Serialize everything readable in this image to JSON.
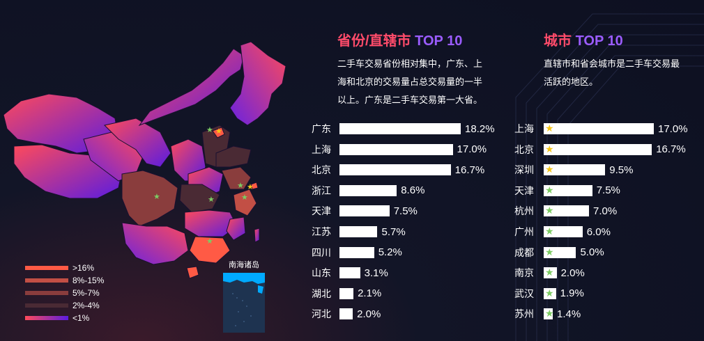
{
  "colors": {
    "accent_red": "#ff4b6a",
    "accent_purple": "#9b5cff",
    "gold_star": "#f5c518",
    "green_star": "#7ccc63"
  },
  "map": {
    "islands_label": "南海诸岛",
    "legend": [
      {
        "label": ">16%",
        "color": "#ff5a45"
      },
      {
        "label": "8%-15%",
        "color": "#c24f45"
      },
      {
        "label": "5%-7%",
        "color": "#8a3d3d"
      },
      {
        "label": "2%-4%",
        "color": "#4a2a34"
      },
      {
        "label": "<1%",
        "gradient": [
          "#ff4a5a",
          "#5a1ce0"
        ]
      }
    ]
  },
  "province_section": {
    "title_cn": "省份/直辖市",
    "title_en": "TOP 10",
    "desc_lines": [
      "二手车交易省份相对集中，广东、上",
      "海和北京的交易量占总交易量的一半",
      "以上。广东是二手车交易第一大省。"
    ]
  },
  "city_section": {
    "title_cn": "城市",
    "title_en": "TOP 10",
    "desc_lines": [
      "直辖市和省会城市是二手车交易最",
      "活跃的地区。"
    ]
  },
  "chart_data": [
    {
      "type": "bar",
      "orientation": "horizontal",
      "categories": [
        "广东",
        "上海",
        "北京",
        "浙江",
        "天津",
        "江苏",
        "四川",
        "山东",
        "湖北",
        "河北"
      ],
      "values": [
        18.2,
        17.0,
        16.7,
        8.6,
        7.5,
        5.7,
        5.2,
        3.1,
        2.1,
        2.0
      ],
      "value_labels": [
        "18.2%",
        "17.0%",
        "16.7%",
        "8.6%",
        "7.5%",
        "5.7%",
        "5.2%",
        "3.1%",
        "2.1%",
        "2.0%"
      ],
      "title": "省份/直辖市 TOP 10",
      "xlim": [
        0,
        18.2
      ]
    },
    {
      "type": "bar",
      "orientation": "horizontal",
      "categories": [
        "上海",
        "北京",
        "深圳",
        "天津",
        "杭州",
        "广州",
        "成都",
        "南京",
        "武汉",
        "苏州"
      ],
      "values": [
        17.0,
        16.7,
        9.5,
        7.5,
        7.0,
        6.0,
        5.0,
        2.0,
        1.9,
        1.4
      ],
      "value_labels": [
        "17.0%",
        "16.7%",
        "9.5%",
        "7.5%",
        "7.0%",
        "6.0%",
        "5.0%",
        "2.0%",
        "1.9%",
        "1.4%"
      ],
      "star_colors": [
        "gold",
        "gold",
        "gold",
        "green",
        "green",
        "green",
        "green",
        "green",
        "green",
        "green"
      ],
      "title": "城市 TOP 10",
      "xlim": [
        0,
        17.0
      ]
    }
  ]
}
